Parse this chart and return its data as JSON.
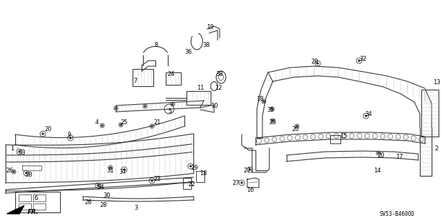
{
  "bg_color": "#ffffff",
  "diagram_code": "SV53-B4600D",
  "fr_label": "FR.",
  "lw": 0.8,
  "darkgray": "#333333",
  "lightgray": "#999999",
  "hatch_color": "#bbbbbb"
}
